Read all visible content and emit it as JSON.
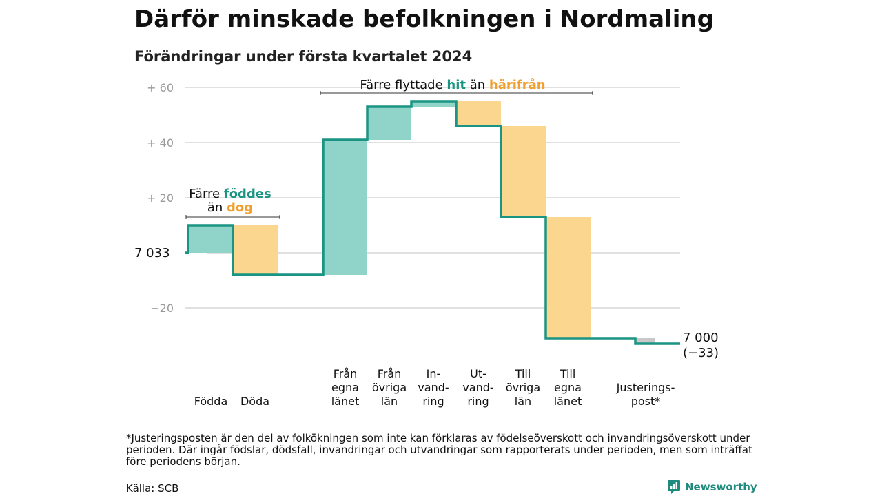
{
  "title": "Därför minskade befolkningen i Nordmaling",
  "subtitle": "Förändringar under första kvartalet 2024",
  "colors": {
    "line": "#1a9483",
    "positive": "#8fd3c9",
    "negative": "#fbd68e",
    "adjustment": "#c8c8c8",
    "hit": "#1a9483",
    "harifran": "#f0a030",
    "grid": "#d6d6d6"
  },
  "chart_data": {
    "type": "waterfall",
    "start_value": 7033,
    "start_label": "7 033",
    "end_label": [
      "7 000",
      "(−33)"
    ],
    "ylim": [
      -33,
      60
    ],
    "grid": true,
    "y_ticks": [
      {
        "value": 60,
        "label": "+ 60"
      },
      {
        "value": 40,
        "label": "+ 40"
      },
      {
        "value": 20,
        "label": "+ 20"
      },
      {
        "value": 0,
        "label": ""
      },
      {
        "value": -20,
        "label": "−20"
      }
    ],
    "steps": [
      {
        "label": [
          "Födda"
        ],
        "from": 0,
        "to": 10,
        "kind": "positive"
      },
      {
        "label": [
          "Döda"
        ],
        "from": 10,
        "to": -8,
        "kind": "negative"
      },
      {
        "label": [
          "Från",
          "egna",
          "länet"
        ],
        "from": -8,
        "to": 41,
        "kind": "positive"
      },
      {
        "label": [
          "Från",
          "övriga",
          "län"
        ],
        "from": 41,
        "to": 53,
        "kind": "positive"
      },
      {
        "label": [
          "In-",
          "vand-",
          "ring"
        ],
        "from": 53,
        "to": 55,
        "kind": "positive"
      },
      {
        "label": [
          "Ut-",
          "vand-",
          "ring"
        ],
        "from": 55,
        "to": 46,
        "kind": "negative"
      },
      {
        "label": [
          "Till",
          "övriga",
          "län"
        ],
        "from": 46,
        "to": 13,
        "kind": "negative"
      },
      {
        "label": [
          "Till",
          "egna",
          "länet"
        ],
        "from": 13,
        "to": -31,
        "kind": "negative"
      },
      {
        "label": [
          "Justerings-",
          "post*"
        ],
        "from": -31,
        "to": -33,
        "kind": "adjustment"
      }
    ],
    "annotations": [
      {
        "lines": [
          [
            {
              "text": "Färre ",
              "style": "plain"
            },
            {
              "text": "föddes",
              "style": "hit"
            }
          ],
          [
            {
              "text": "än ",
              "style": "plain"
            },
            {
              "text": "dog",
              "style": "harifran"
            }
          ]
        ]
      },
      {
        "lines": [
          [
            {
              "text": "Färre flyttade ",
              "style": "plain"
            },
            {
              "text": "hit",
              "style": "hit"
            },
            {
              "text": " än ",
              "style": "plain"
            },
            {
              "text": "härifrån",
              "style": "harifran"
            }
          ]
        ]
      }
    ]
  },
  "footnote": "*Justeringsposten är den del av folkökningen som inte kan förklaras av födelseöverskott och invandringsöverskott under perioden. Där ingår födslar, dödsfall, invandringar och utvandringar som rapporterats under perioden, men som inträffat före periodens början.",
  "source": "Källa: SCB",
  "brand": {
    "name": "Newsworthy",
    "icon": "newsworthy-logo-icon"
  }
}
